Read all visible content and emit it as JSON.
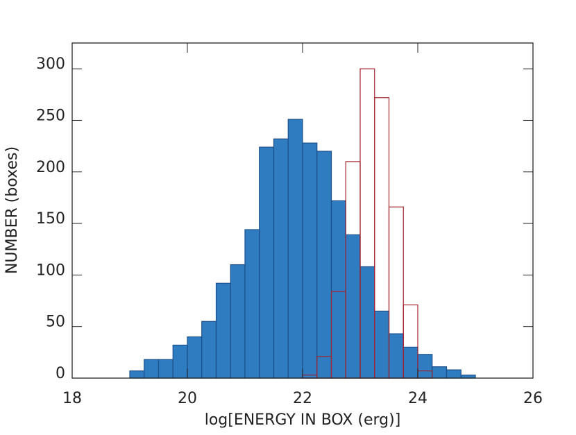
{
  "chart_data": {
    "type": "histogram",
    "xlabel": "log[ENERGY IN BOX (erg)]",
    "ylabel": "NUMBER (boxes)",
    "xlim": [
      18,
      26
    ],
    "xticks": [
      18,
      20,
      22,
      24,
      26
    ],
    "ylim": [
      0,
      325
    ],
    "yticks": [
      0,
      50,
      100,
      150,
      200,
      250,
      300
    ],
    "series": [
      {
        "fill": "#2f7dc0",
        "color": "#1b4f8c",
        "bins": [
          19.0,
          19.25,
          19.5,
          19.75,
          20.0,
          20.25,
          20.5,
          20.75,
          21.0,
          21.25,
          21.5,
          21.75,
          22.0,
          22.25,
          22.5,
          22.75,
          23.0,
          23.25,
          23.5,
          23.75,
          24.0,
          24.25,
          24.5,
          24.75,
          25.0
        ],
        "values": [
          7,
          18,
          18,
          32,
          40,
          55,
          92,
          110,
          144,
          224,
          232,
          251,
          228,
          220,
          172,
          139,
          108,
          65,
          43,
          30,
          23,
          11,
          8,
          3
        ]
      },
      {
        "fill": "none",
        "color": "#a3232e",
        "bins": [
          22.0,
          22.25,
          22.5,
          22.75,
          23.0,
          23.25,
          23.5,
          23.75,
          24.0,
          24.25
        ],
        "values": [
          3,
          21,
          84,
          210,
          300,
          272,
          166,
          71,
          7
        ]
      }
    ]
  }
}
